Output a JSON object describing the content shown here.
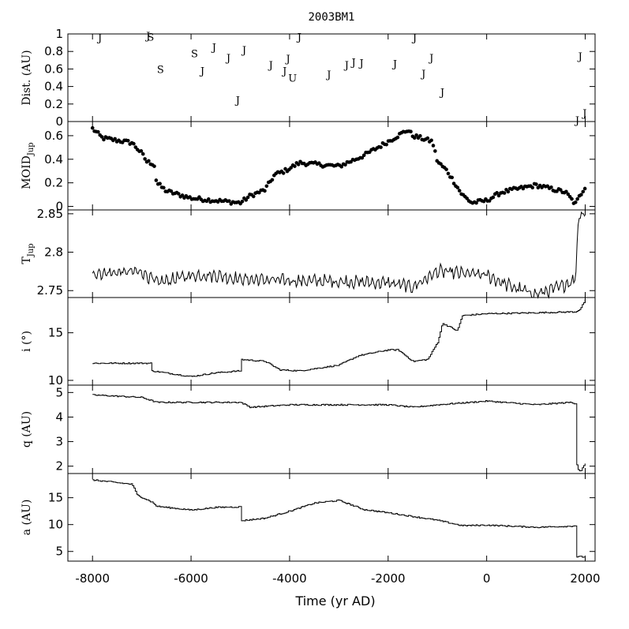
{
  "chart_data": {
    "title": "2003BM1",
    "type": "multi-panel",
    "xlabel": "Time (yr AD)",
    "xlim": [
      -8500,
      2200
    ],
    "xticks": [
      -8000,
      -6000,
      -4000,
      -2000,
      0,
      2000
    ],
    "panels": [
      {
        "id": "dist",
        "type": "scatter-markers",
        "ylabel": "Dist. (AU)",
        "ylim": [
          0,
          1
        ],
        "yticks": [
          0,
          0.2,
          0.4,
          0.6,
          0.8,
          1
        ],
        "ytick_labels": [
          "0",
          "0.2",
          "0.4",
          "0.6",
          "0.8",
          "1"
        ],
        "encounters": [
          {
            "t": -7850,
            "d": 0.96,
            "body": "J"
          },
          {
            "t": -6870,
            "d": 0.98,
            "body": "J"
          },
          {
            "t": -6820,
            "d": 0.97,
            "body": "S"
          },
          {
            "t": -6620,
            "d": 0.6,
            "body": "S"
          },
          {
            "t": -5930,
            "d": 0.78,
            "body": "S"
          },
          {
            "t": -5770,
            "d": 0.58,
            "body": "J"
          },
          {
            "t": -5530,
            "d": 0.85,
            "body": "J"
          },
          {
            "t": -5240,
            "d": 0.73,
            "body": "J"
          },
          {
            "t": -5050,
            "d": 0.25,
            "body": "J"
          },
          {
            "t": -4920,
            "d": 0.82,
            "body": "J"
          },
          {
            "t": -4380,
            "d": 0.65,
            "body": "J"
          },
          {
            "t": -4100,
            "d": 0.58,
            "body": "J"
          },
          {
            "t": -4030,
            "d": 0.72,
            "body": "J"
          },
          {
            "t": -3940,
            "d": 0.5,
            "body": "U"
          },
          {
            "t": -3800,
            "d": 0.97,
            "body": "J"
          },
          {
            "t": -3200,
            "d": 0.54,
            "body": "J"
          },
          {
            "t": -2840,
            "d": 0.65,
            "body": "J"
          },
          {
            "t": -2700,
            "d": 0.68,
            "body": "J"
          },
          {
            "t": -2540,
            "d": 0.67,
            "body": "J"
          },
          {
            "t": -1860,
            "d": 0.66,
            "body": "J"
          },
          {
            "t": -1460,
            "d": 0.96,
            "body": "J"
          },
          {
            "t": -1280,
            "d": 0.55,
            "body": "J"
          },
          {
            "t": -1120,
            "d": 0.73,
            "body": "J"
          },
          {
            "t": -900,
            "d": 0.34,
            "body": "J"
          },
          {
            "t": 1840,
            "d": 0.02,
            "body": "J"
          },
          {
            "t": 1900,
            "d": 0.75,
            "body": "J"
          },
          {
            "t": 1990,
            "d": 0.1,
            "body": "J"
          }
        ]
      },
      {
        "id": "moid",
        "type": "scatter",
        "ylabel": "MOID",
        "ylabel_sub": "Jup",
        "ylim": [
          -0.03,
          0.72
        ],
        "yticks": [
          0,
          0.2,
          0.4,
          0.6
        ],
        "ytick_labels": [
          "0",
          "0.2",
          "0.4",
          "0.6"
        ],
        "key_points": [
          [
            -8000,
            0.66
          ],
          [
            -7800,
            0.58
          ],
          [
            -7200,
            0.54
          ],
          [
            -7000,
            0.45
          ],
          [
            -6900,
            0.38
          ],
          [
            -6750,
            0.36
          ],
          [
            -6700,
            0.2
          ],
          [
            -6500,
            0.13
          ],
          [
            -6000,
            0.07
          ],
          [
            -5000,
            0.03
          ],
          [
            -4800,
            0.09
          ],
          [
            -4500,
            0.14
          ],
          [
            -4300,
            0.27
          ],
          [
            -4100,
            0.3
          ],
          [
            -3800,
            0.37
          ],
          [
            -3000,
            0.34
          ],
          [
            -2500,
            0.43
          ],
          [
            -2000,
            0.55
          ],
          [
            -1600,
            0.65
          ],
          [
            -1500,
            0.6
          ],
          [
            -1100,
            0.55
          ],
          [
            -1000,
            0.38
          ],
          [
            -800,
            0.3
          ],
          [
            -500,
            0.1
          ],
          [
            -300,
            0.03
          ],
          [
            0,
            0.05
          ],
          [
            300,
            0.12
          ],
          [
            1000,
            0.18
          ],
          [
            1600,
            0.12
          ],
          [
            1800,
            0.02
          ],
          [
            2000,
            0.17
          ]
        ]
      },
      {
        "id": "tjup",
        "type": "line",
        "ylabel": "T",
        "ylabel_sub": "Jup",
        "ylim": [
          2.741,
          2.855
        ],
        "yticks": [
          2.75,
          2.8,
          2.85
        ],
        "ytick_labels": [
          "2.75",
          "2.8",
          "2.85"
        ],
        "key_points": [
          [
            -8000,
            2.772
          ],
          [
            -7000,
            2.775
          ],
          [
            -6700,
            2.76
          ],
          [
            -6000,
            2.77
          ],
          [
            -5500,
            2.77
          ],
          [
            -5000,
            2.765
          ],
          [
            -4000,
            2.763
          ],
          [
            -3000,
            2.762
          ],
          [
            -2000,
            2.76
          ],
          [
            -1500,
            2.755
          ],
          [
            -1000,
            2.775
          ],
          [
            0,
            2.77
          ],
          [
            500,
            2.755
          ],
          [
            1000,
            2.745
          ],
          [
            1500,
            2.755
          ],
          [
            1800,
            2.765
          ],
          [
            1870,
            2.85
          ],
          [
            2000,
            2.85
          ]
        ]
      },
      {
        "id": "incl",
        "type": "line",
        "ylabel": "i (°)",
        "ylim": [
          9.5,
          18.7
        ],
        "yticks": [
          10,
          15
        ],
        "ytick_labels": [
          "10",
          "15"
        ],
        "key_points": [
          [
            -8000,
            11.8
          ],
          [
            -6800,
            11.8
          ],
          [
            -6800,
            11
          ],
          [
            -6000,
            10.4
          ],
          [
            -5500,
            10.8
          ],
          [
            -5000,
            11
          ],
          [
            -5000,
            12.2
          ],
          [
            -4500,
            12
          ],
          [
            -4200,
            11.1
          ],
          [
            -3800,
            11
          ],
          [
            -3000,
            11.6
          ],
          [
            -2600,
            12.6
          ],
          [
            -2000,
            13.2
          ],
          [
            -1800,
            13.2
          ],
          [
            -1500,
            12
          ],
          [
            -1200,
            12.2
          ],
          [
            -1000,
            14
          ],
          [
            -900,
            16
          ],
          [
            -600,
            15.2
          ],
          [
            -500,
            16.8
          ],
          [
            0,
            17
          ],
          [
            1000,
            17.1
          ],
          [
            1800,
            17.2
          ],
          [
            1900,
            17.5
          ],
          [
            2000,
            18.5
          ]
        ]
      },
      {
        "id": "q",
        "type": "line",
        "ylabel": "q (AU)",
        "ylim": [
          1.7,
          5.3
        ],
        "yticks": [
          2,
          3,
          4,
          5
        ],
        "ytick_labels": [
          "2",
          "3",
          "4",
          "5"
        ],
        "key_points": [
          [
            -8000,
            4.9
          ],
          [
            -7000,
            4.8
          ],
          [
            -6700,
            4.6
          ],
          [
            -6000,
            4.6
          ],
          [
            -5000,
            4.6
          ],
          [
            -4800,
            4.4
          ],
          [
            -4000,
            4.5
          ],
          [
            -2000,
            4.5
          ],
          [
            -1500,
            4.4
          ],
          [
            -1000,
            4.5
          ],
          [
            0,
            4.65
          ],
          [
            1000,
            4.5
          ],
          [
            1700,
            4.6
          ],
          [
            1800,
            4.55
          ],
          [
            1830,
            1.9
          ],
          [
            1900,
            1.8
          ],
          [
            2000,
            2.1
          ]
        ]
      },
      {
        "id": "a",
        "type": "line",
        "ylabel": "a (AU)",
        "ylim": [
          3.2,
          19.5
        ],
        "yticks": [
          5,
          10,
          15
        ],
        "ytick_labels": [
          "5",
          "10",
          "15"
        ],
        "key_points": [
          [
            -8000,
            18.3
          ],
          [
            -7200,
            17.5
          ],
          [
            -7100,
            15.5
          ],
          [
            -6800,
            14.2
          ],
          [
            -6700,
            13.4
          ],
          [
            -6000,
            12.7
          ],
          [
            -5500,
            13.2
          ],
          [
            -5000,
            13.3
          ],
          [
            -5000,
            10.7
          ],
          [
            -4500,
            11.2
          ],
          [
            -4000,
            12.5
          ],
          [
            -3500,
            14
          ],
          [
            -3000,
            14.5
          ],
          [
            -2500,
            12.8
          ],
          [
            -2000,
            12.2
          ],
          [
            -1500,
            11.5
          ],
          [
            -1000,
            10.8
          ],
          [
            -500,
            9.8
          ],
          [
            0,
            9.9
          ],
          [
            1000,
            9.5
          ],
          [
            1700,
            9.7
          ],
          [
            1800,
            9.8
          ],
          [
            1820,
            4
          ],
          [
            2000,
            4
          ]
        ]
      }
    ]
  }
}
